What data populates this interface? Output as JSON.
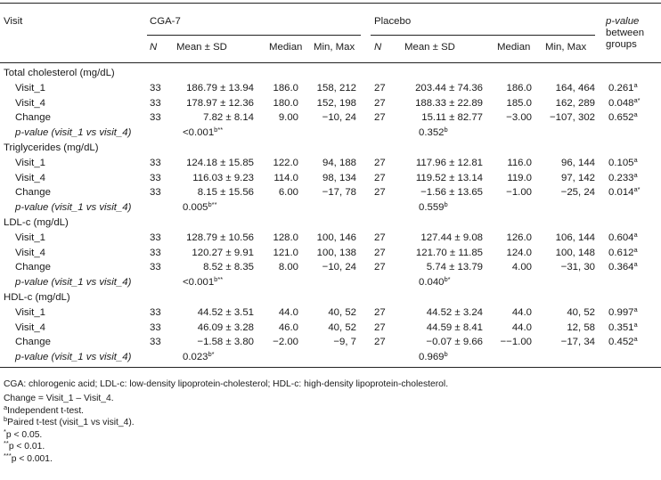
{
  "header": {
    "visit_label": "Visit",
    "group_cga": "CGA-7",
    "group_placebo": "Placebo",
    "pvalue_line1": "p-value",
    "pvalue_line2": "between",
    "pvalue_line3": "groups",
    "col_n": "N",
    "col_mean": "Mean ± SD",
    "col_median": "Median",
    "col_minmax": "Min, Max"
  },
  "sections": [
    {
      "title": "Total cholesterol (mg/dL)",
      "rows": [
        {
          "label": "Visit_1",
          "cga_n": "33",
          "cga_mean": "186.79 ± 13.94",
          "cga_median": "186.0",
          "cga_minmax": "158, 212",
          "pl_n": "27",
          "pl_mean": "203.44 ± 74.36",
          "pl_median": "186.0",
          "pl_minmax": "164, 464",
          "p": "0.261",
          "p_sup": "a"
        },
        {
          "label": "Visit_4",
          "cga_n": "33",
          "cga_mean": "178.97 ± 12.36",
          "cga_median": "180.0",
          "cga_minmax": "152, 198",
          "pl_n": "27",
          "pl_mean": "188.33 ± 22.89",
          "pl_median": "185.0",
          "pl_minmax": "162, 289",
          "p": "0.048",
          "p_sup": "a*"
        },
        {
          "label": "Change",
          "cga_n": "33",
          "cga_mean": "7.82 ± 8.14",
          "cga_median": "9.00",
          "cga_minmax": "−10, 24",
          "pl_n": "27",
          "pl_mean": "15.11 ± 82.77",
          "pl_median": "−3.00",
          "pl_minmax": "−107, 302",
          "p": "0.652",
          "p_sup": "a"
        }
      ],
      "pv_label": "p-value (visit_1 vs visit_4)",
      "pv_cga": "<0.001",
      "pv_cga_sup": "b**",
      "pv_pl": "0.352",
      "pv_pl_sup": "b"
    },
    {
      "title": "Triglycerides (mg/dL)",
      "rows": [
        {
          "label": "Visit_1",
          "cga_n": "33",
          "cga_mean": "124.18 ± 15.85",
          "cga_median": "122.0",
          "cga_minmax": "94, 188",
          "pl_n": "27",
          "pl_mean": "117.96 ± 12.81",
          "pl_median": "116.0",
          "pl_minmax": "96, 144",
          "p": "0.105",
          "p_sup": "a"
        },
        {
          "label": "Visit_4",
          "cga_n": "33",
          "cga_mean": "116.03 ± 9.23",
          "cga_median": "114.0",
          "cga_minmax": "98, 134",
          "pl_n": "27",
          "pl_mean": "119.52 ± 13.14",
          "pl_median": "119.0",
          "pl_minmax": "97, 142",
          "p": "0.233",
          "p_sup": "a"
        },
        {
          "label": "Change",
          "cga_n": "33",
          "cga_mean": "8.15 ± 15.56",
          "cga_median": "6.00",
          "cga_minmax": "−17, 78",
          "pl_n": "27",
          "pl_mean": "−1.56 ± 13.65",
          "pl_median": "−1.00",
          "pl_minmax": "−25, 24",
          "p": "0.014",
          "p_sup": "a*"
        }
      ],
      "pv_label": "p-value (visit_1 vs visit_4)",
      "pv_cga": "0.005",
      "pv_cga_sup": "b**",
      "pv_pl": "0.559",
      "pv_pl_sup": "b"
    },
    {
      "title": "LDL-c (mg/dL)",
      "rows": [
        {
          "label": "Visit_1",
          "cga_n": "33",
          "cga_mean": "128.79 ± 10.56",
          "cga_median": "128.0",
          "cga_minmax": "100, 146",
          "pl_n": "27",
          "pl_mean": "127.44 ± 9.08",
          "pl_median": "126.0",
          "pl_minmax": "106, 144",
          "p": "0.604",
          "p_sup": "a"
        },
        {
          "label": "Visit_4",
          "cga_n": "33",
          "cga_mean": "120.27 ± 9.91",
          "cga_median": "121.0",
          "cga_minmax": "100, 138",
          "pl_n": "27",
          "pl_mean": "121.70 ± 11.85",
          "pl_median": "124.0",
          "pl_minmax": "100, 148",
          "p": "0.612",
          "p_sup": "a"
        },
        {
          "label": "Change",
          "cga_n": "33",
          "cga_mean": "8.52 ± 8.35",
          "cga_median": "8.00",
          "cga_minmax": "−10, 24",
          "pl_n": "27",
          "pl_mean": "5.74 ± 13.79",
          "pl_median": "4.00",
          "pl_minmax": "−31, 30",
          "p": "0.364",
          "p_sup": "a"
        }
      ],
      "pv_label": "p-value (visit_1 vs visit_4)",
      "pv_cga": "<0.001",
      "pv_cga_sup": "b**",
      "pv_pl": "0.040",
      "pv_pl_sup": "b*"
    },
    {
      "title": "HDL-c (mg/dL)",
      "rows": [
        {
          "label": "Visit_1",
          "cga_n": "33",
          "cga_mean": "44.52 ± 3.51",
          "cga_median": "44.0",
          "cga_minmax": "40, 52",
          "pl_n": "27",
          "pl_mean": "44.52 ± 3.24",
          "pl_median": "44.0",
          "pl_minmax": "40, 52",
          "p": "0.997",
          "p_sup": "a"
        },
        {
          "label": "Visit_4",
          "cga_n": "33",
          "cga_mean": "46.09 ± 3.28",
          "cga_median": "46.0",
          "cga_minmax": "40, 52",
          "pl_n": "27",
          "pl_mean": "44.59 ± 8.41",
          "pl_median": "44.0",
          "pl_minmax": "12, 58",
          "p": "0.351",
          "p_sup": "a"
        },
        {
          "label": "Change",
          "cga_n": "33",
          "cga_mean": "−1.58 ± 3.80",
          "cga_median": "−2.00",
          "cga_minmax": "−9, 7",
          "pl_n": "27",
          "pl_mean": "−0.07 ± 9.66",
          "pl_median": "−−1.00",
          "pl_minmax": "−17, 34",
          "p": "0.452",
          "p_sup": "a"
        }
      ],
      "pv_label": "p-value (visit_1 vs visit_4)",
      "pv_cga": "0.023",
      "pv_cga_sup": "b*",
      "pv_pl": "0.969",
      "pv_pl_sup": "b"
    }
  ],
  "footnotes": [
    {
      "sup": "",
      "text": "CGA: chlorogenic acid; LDL-c: low-density lipoprotein-cholesterol; HDL-c: high-density lipoprotein-cholesterol."
    },
    {
      "sup": "",
      "text": "Change = Visit_1 – Visit_4."
    },
    {
      "sup": "a",
      "text": "Independent t-test."
    },
    {
      "sup": "b",
      "text": "Paired t-test (visit_1 vs visit_4)."
    },
    {
      "sup": "*",
      "text": "p < 0.05."
    },
    {
      "sup": "**",
      "text": "p < 0.01."
    },
    {
      "sup": "***",
      "text": "p < 0.001."
    }
  ]
}
